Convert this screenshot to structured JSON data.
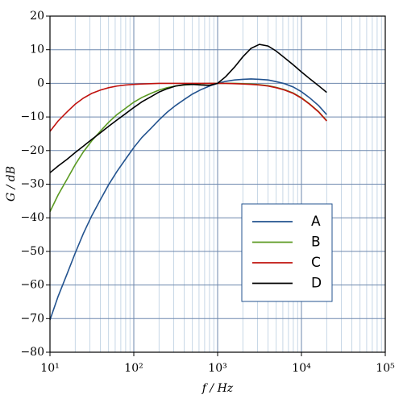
{
  "chart_data": {
    "type": "line",
    "xlabel": "f / Hz",
    "ylabel": "G / dB",
    "x": [
      10,
      12.5,
      16,
      20,
      25,
      31.5,
      40,
      50,
      63,
      80,
      100,
      125,
      160,
      200,
      250,
      315,
      400,
      500,
      630,
      800,
      1000,
      1250,
      1600,
      2000,
      2500,
      3150,
      4000,
      5000,
      6300,
      8000,
      10000,
      12500,
      16000,
      20000
    ],
    "xscale": "log",
    "minor_grid": true,
    "grid": true,
    "legend": "center right",
    "xlim": [
      10,
      100000
    ],
    "xticks": [
      {
        "value": 10,
        "label": "10¹"
      },
      {
        "value": 100,
        "label": "10²"
      },
      {
        "value": 1000,
        "label": "10³"
      },
      {
        "value": 10000,
        "label": "10⁴"
      },
      {
        "value": 100000,
        "label": "10⁵"
      }
    ],
    "ylim": [
      -80,
      20
    ],
    "yticks": [
      {
        "value": -80,
        "label": "−80"
      },
      {
        "value": -70,
        "label": "−70"
      },
      {
        "value": -60,
        "label": "−60"
      },
      {
        "value": -50,
        "label": "−50"
      },
      {
        "value": -40,
        "label": "−40"
      },
      {
        "value": -30,
        "label": "−30"
      },
      {
        "value": -20,
        "label": "−20"
      },
      {
        "value": -10,
        "label": "−10"
      },
      0,
      10,
      20
    ],
    "series": [
      {
        "name": "A",
        "color": "#23538f",
        "values": [
          -70.4,
          -63.4,
          -56.7,
          -50.5,
          -44.7,
          -39.4,
          -34.6,
          -30.2,
          -26.2,
          -22.5,
          -19.1,
          -16.1,
          -13.4,
          -10.9,
          -8.6,
          -6.6,
          -4.8,
          -3.2,
          -1.9,
          -0.8,
          0,
          0.6,
          1.0,
          1.2,
          1.3,
          1.2,
          1.0,
          0.5,
          -0.1,
          -1.1,
          -2.5,
          -4.3,
          -6.6,
          -9.3
        ]
      },
      {
        "name": "B",
        "color": "#5b9a22",
        "values": [
          -38.2,
          -33.2,
          -28.5,
          -24.2,
          -20.4,
          -17.1,
          -14.2,
          -11.6,
          -9.3,
          -7.4,
          -5.6,
          -4.2,
          -3.0,
          -2.0,
          -1.3,
          -0.8,
          -0.5,
          -0.3,
          -0.1,
          0,
          0,
          0,
          0,
          -0.1,
          -0.2,
          -0.4,
          -0.7,
          -1.2,
          -1.9,
          -2.9,
          -4.3,
          -6.1,
          -8.4,
          -11.1
        ]
      },
      {
        "name": "C",
        "color": "#c0120e",
        "values": [
          -14.3,
          -11.2,
          -8.5,
          -6.2,
          -4.4,
          -3.0,
          -2.0,
          -1.3,
          -0.8,
          -0.5,
          -0.3,
          -0.2,
          -0.1,
          0,
          0,
          0,
          0,
          0,
          0,
          0,
          0,
          0,
          -0.1,
          -0.2,
          -0.3,
          -0.5,
          -0.8,
          -1.3,
          -2.0,
          -3.0,
          -4.4,
          -6.2,
          -8.5,
          -11.2
        ]
      },
      {
        "name": "D",
        "color": "#000000",
        "values": [
          -26.6,
          -24.6,
          -22.6,
          -20.6,
          -18.7,
          -16.7,
          -14.7,
          -12.8,
          -10.9,
          -9.0,
          -7.2,
          -5.5,
          -4.0,
          -2.6,
          -1.6,
          -0.8,
          -0.4,
          -0.3,
          -0.5,
          -0.6,
          0,
          2.0,
          4.9,
          7.9,
          10.4,
          11.6,
          11.1,
          9.6,
          7.6,
          5.5,
          3.4,
          1.4,
          -0.7,
          -2.7
        ]
      }
    ]
  }
}
